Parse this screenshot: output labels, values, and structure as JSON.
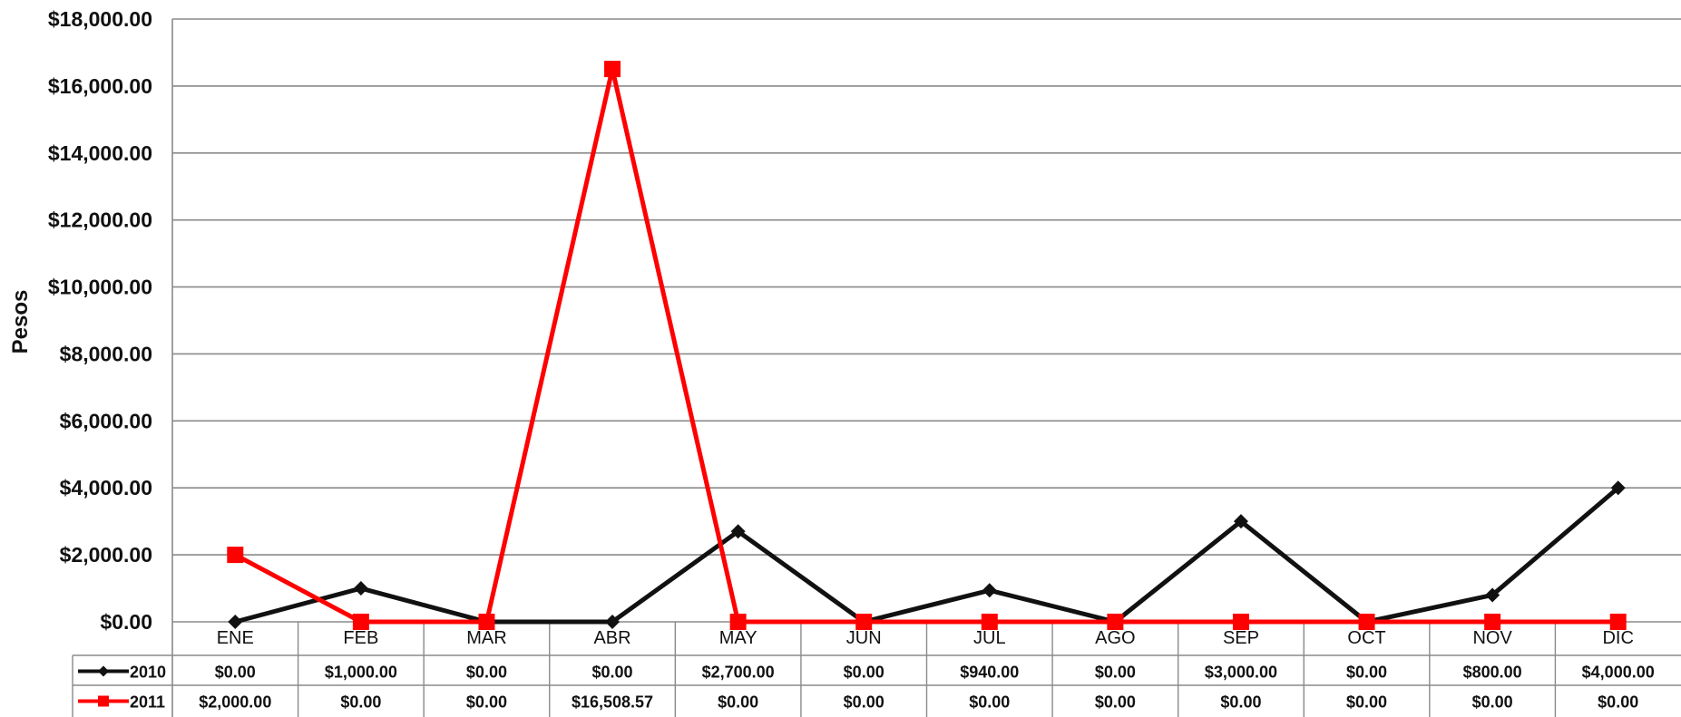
{
  "chart_data": {
    "type": "line",
    "ylabel": "Pesos",
    "xlabel": "",
    "ylim": [
      0,
      18000
    ],
    "yticks": [
      0,
      2000,
      4000,
      6000,
      8000,
      10000,
      12000,
      14000,
      16000,
      18000
    ],
    "ytick_labels": [
      "$0.00",
      "$2,000.00",
      "$4,000.00",
      "$6,000.00",
      "$8,000.00",
      "$10,000.00",
      "$12,000.00",
      "$14,000.00",
      "$16,000.00",
      "$18,000.00"
    ],
    "categories": [
      "ENE",
      "FEB",
      "MAR",
      "ABR",
      "MAY",
      "JUN",
      "JUL",
      "AGO",
      "SEP",
      "OCT",
      "NOV",
      "DIC"
    ],
    "grid": true,
    "legend": "data-table-left",
    "series": [
      {
        "name": "2010",
        "color": "#111111",
        "marker": "diamond",
        "values": [
          0,
          1000,
          0,
          0,
          2700,
          0,
          940,
          0,
          3000,
          0,
          800,
          4000
        ],
        "labels": [
          "$0.00",
          "$1,000.00",
          "$0.00",
          "$0.00",
          "$2,700.00",
          "$0.00",
          "$940.00",
          "$0.00",
          "$3,000.00",
          "$0.00",
          "$800.00",
          "$4,000.00"
        ]
      },
      {
        "name": "2011",
        "color": "#ff0000",
        "marker": "square",
        "values": [
          2000,
          0,
          0,
          16508.57,
          0,
          0,
          0,
          0,
          0,
          0,
          0,
          0
        ],
        "labels": [
          "$2,000.00",
          "$0.00",
          "$0.00",
          "$16,508.57",
          "$0.00",
          "$0.00",
          "$0.00",
          "$0.00",
          "$0.00",
          "$0.00",
          "$0.00",
          "$0.00"
        ]
      }
    ]
  }
}
